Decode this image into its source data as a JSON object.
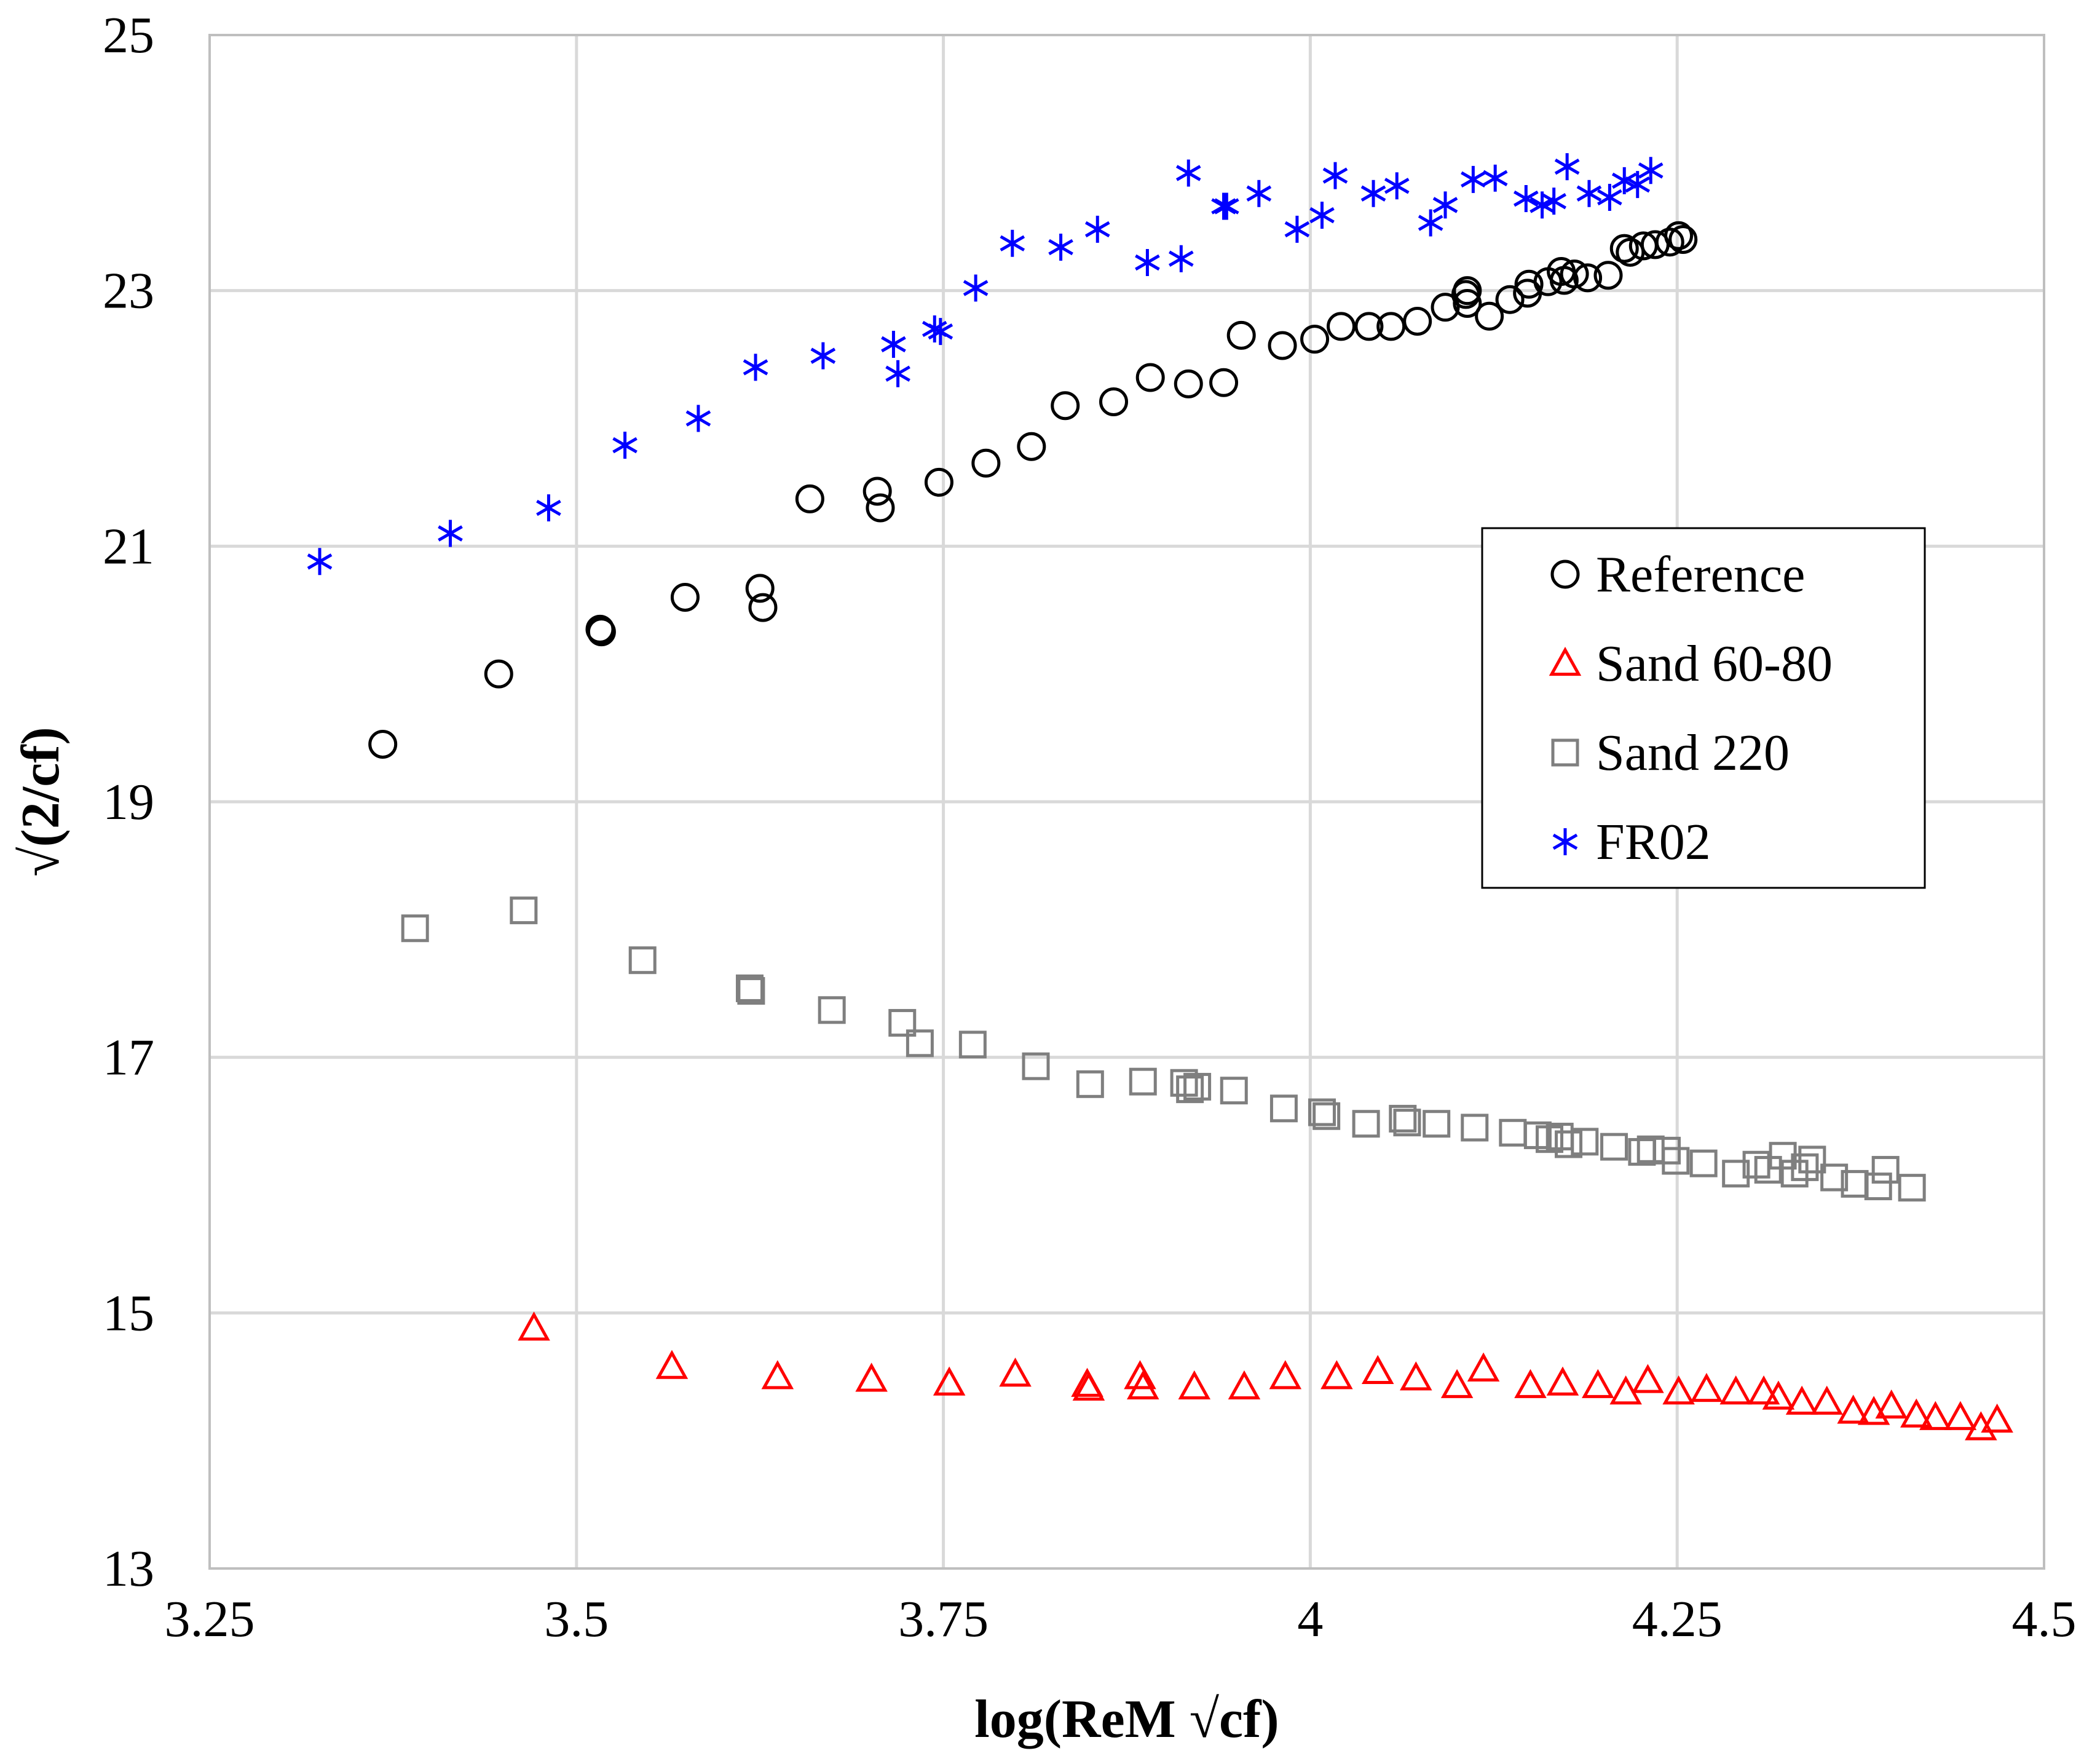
{
  "chart_data": {
    "type": "scatter",
    "title": "",
    "xlabel": "log(ReM √cf)",
    "ylabel": "√(2/cf)",
    "xlim": [
      3.25,
      4.5
    ],
    "ylim": [
      13,
      25
    ],
    "xticks": [
      3.25,
      3.5,
      3.75,
      4,
      4.25,
      4.5
    ],
    "xtick_labels": [
      "3.25",
      "3.5",
      "3.75",
      "4",
      "4.25",
      "4.5"
    ],
    "yticks": [
      13,
      15,
      17,
      19,
      21,
      23,
      25
    ],
    "ytick_labels": [
      "13",
      "15",
      "17",
      "19",
      "21",
      "23",
      "25"
    ],
    "grid": true,
    "legend_position": "right-middle",
    "series": [
      {
        "name": "Reference",
        "marker": "circle",
        "color": "#000000",
        "points": [
          [
            3.368,
            19.45
          ],
          [
            3.447,
            20.0
          ],
          [
            3.516,
            20.35
          ],
          [
            3.517,
            20.33
          ],
          [
            3.574,
            20.6
          ],
          [
            3.625,
            20.67
          ],
          [
            3.627,
            20.52
          ],
          [
            3.659,
            21.37
          ],
          [
            3.705,
            21.43
          ],
          [
            3.707,
            21.3
          ],
          [
            3.747,
            21.5
          ],
          [
            3.779,
            21.65
          ],
          [
            3.81,
            21.78
          ],
          [
            3.833,
            22.1
          ],
          [
            3.866,
            22.13
          ],
          [
            3.891,
            22.32
          ],
          [
            3.917,
            22.27
          ],
          [
            3.941,
            22.28
          ],
          [
            3.953,
            22.65
          ],
          [
            3.981,
            22.57
          ],
          [
            4.003,
            22.62
          ],
          [
            4.021,
            22.72
          ],
          [
            4.04,
            22.72
          ],
          [
            4.055,
            22.72
          ],
          [
            4.073,
            22.76
          ],
          [
            4.092,
            22.87
          ],
          [
            4.106,
            22.97
          ],
          [
            4.107,
            23.0
          ],
          [
            4.107,
            22.9
          ],
          [
            4.122,
            22.8
          ],
          [
            4.136,
            22.93
          ],
          [
            4.148,
            22.98
          ],
          [
            4.149,
            23.05
          ],
          [
            4.162,
            23.07
          ],
          [
            4.171,
            23.15
          ],
          [
            4.173,
            23.08
          ],
          [
            4.18,
            23.13
          ],
          [
            4.189,
            23.1
          ],
          [
            4.203,
            23.12
          ],
          [
            4.214,
            23.33
          ],
          [
            4.218,
            23.3
          ],
          [
            4.227,
            23.35
          ],
          [
            4.235,
            23.36
          ],
          [
            4.245,
            23.38
          ],
          [
            4.251,
            23.43
          ],
          [
            4.254,
            23.4
          ]
        ]
      },
      {
        "name": "Sand 60-80",
        "marker": "triangle",
        "color": "#ff0000",
        "points": [
          [
            3.471,
            14.88
          ],
          [
            3.565,
            14.58
          ],
          [
            3.637,
            14.5
          ],
          [
            3.701,
            14.48
          ],
          [
            3.754,
            14.45
          ],
          [
            3.799,
            14.52
          ],
          [
            3.848,
            14.44
          ],
          [
            3.849,
            14.41
          ],
          [
            3.884,
            14.5
          ],
          [
            3.886,
            14.42
          ],
          [
            3.921,
            14.42
          ],
          [
            3.955,
            14.42
          ],
          [
            3.983,
            14.5
          ],
          [
            4.018,
            14.5
          ],
          [
            4.046,
            14.54
          ],
          [
            4.072,
            14.49
          ],
          [
            4.1,
            14.43
          ],
          [
            4.118,
            14.56
          ],
          [
            4.15,
            14.43
          ],
          [
            4.172,
            14.45
          ],
          [
            4.196,
            14.43
          ],
          [
            4.215,
            14.38
          ],
          [
            4.23,
            14.47
          ],
          [
            4.251,
            14.38
          ],
          [
            4.27,
            14.4
          ],
          [
            4.29,
            14.38
          ],
          [
            4.309,
            14.38
          ],
          [
            4.319,
            14.34
          ],
          [
            4.335,
            14.3
          ],
          [
            4.352,
            14.3
          ],
          [
            4.37,
            14.23
          ],
          [
            4.384,
            14.22
          ],
          [
            4.396,
            14.27
          ],
          [
            4.413,
            14.2
          ],
          [
            4.426,
            14.18
          ],
          [
            4.443,
            14.18
          ],
          [
            4.457,
            14.1
          ],
          [
            4.468,
            14.16
          ]
        ]
      },
      {
        "name": "Sand 220",
        "marker": "square",
        "color": "#7f7f7f",
        "points": [
          [
            3.39,
            18.01
          ],
          [
            3.464,
            18.15
          ],
          [
            3.545,
            17.76
          ],
          [
            3.618,
            17.54
          ],
          [
            3.619,
            17.52
          ],
          [
            3.674,
            17.37
          ],
          [
            3.722,
            17.27
          ],
          [
            3.734,
            17.11
          ],
          [
            3.77,
            17.1
          ],
          [
            3.813,
            16.93
          ],
          [
            3.85,
            16.79
          ],
          [
            3.886,
            16.81
          ],
          [
            3.914,
            16.8
          ],
          [
            3.918,
            16.75
          ],
          [
            3.923,
            16.77
          ],
          [
            3.948,
            16.74
          ],
          [
            3.982,
            16.6
          ],
          [
            4.008,
            16.57
          ],
          [
            4.011,
            16.54
          ],
          [
            4.038,
            16.48
          ],
          [
            4.063,
            16.52
          ],
          [
            4.066,
            16.49
          ],
          [
            4.086,
            16.48
          ],
          [
            4.112,
            16.45
          ],
          [
            4.138,
            16.41
          ],
          [
            4.155,
            16.39
          ],
          [
            4.163,
            16.36
          ],
          [
            4.17,
            16.38
          ],
          [
            4.176,
            16.32
          ],
          [
            4.187,
            16.34
          ],
          [
            4.207,
            16.3
          ],
          [
            4.226,
            16.26
          ],
          [
            4.232,
            16.28
          ],
          [
            4.243,
            16.27
          ],
          [
            4.249,
            16.19
          ],
          [
            4.268,
            16.17
          ],
          [
            4.29,
            16.09
          ],
          [
            4.304,
            16.16
          ],
          [
            4.312,
            16.12
          ],
          [
            4.322,
            16.23
          ],
          [
            4.33,
            16.09
          ],
          [
            4.337,
            16.14
          ],
          [
            4.342,
            16.2
          ],
          [
            4.357,
            16.06
          ],
          [
            4.371,
            16.01
          ],
          [
            4.387,
            15.99
          ],
          [
            4.392,
            16.12
          ],
          [
            4.41,
            15.98
          ]
        ]
      },
      {
        "name": "FR02",
        "marker": "asterisk",
        "color": "#0000ff",
        "points": [
          [
            3.325,
            20.88
          ],
          [
            3.414,
            21.1
          ],
          [
            3.481,
            21.3
          ],
          [
            3.533,
            21.79
          ],
          [
            3.583,
            22.0
          ],
          [
            3.622,
            22.4
          ],
          [
            3.668,
            22.49
          ],
          [
            3.716,
            22.58
          ],
          [
            3.719,
            22.35
          ],
          [
            3.744,
            22.7
          ],
          [
            3.748,
            22.68
          ],
          [
            3.772,
            23.02
          ],
          [
            3.797,
            23.37
          ],
          [
            3.83,
            23.34
          ],
          [
            3.855,
            23.48
          ],
          [
            3.889,
            23.22
          ],
          [
            3.912,
            23.25
          ],
          [
            3.917,
            23.92
          ],
          [
            3.941,
            23.66
          ],
          [
            3.943,
            23.66
          ],
          [
            3.965,
            23.76
          ],
          [
            3.991,
            23.48
          ],
          [
            4.008,
            23.59
          ],
          [
            4.017,
            23.9
          ],
          [
            4.043,
            23.76
          ],
          [
            4.059,
            23.82
          ],
          [
            4.082,
            23.53
          ],
          [
            4.092,
            23.67
          ],
          [
            4.111,
            23.87
          ],
          [
            4.126,
            23.88
          ],
          [
            4.147,
            23.72
          ],
          [
            4.158,
            23.67
          ],
          [
            4.166,
            23.7
          ],
          [
            4.175,
            23.97
          ],
          [
            4.19,
            23.76
          ],
          [
            4.204,
            23.73
          ],
          [
            4.214,
            23.86
          ],
          [
            4.223,
            23.83
          ],
          [
            4.232,
            23.94
          ]
        ]
      }
    ]
  }
}
